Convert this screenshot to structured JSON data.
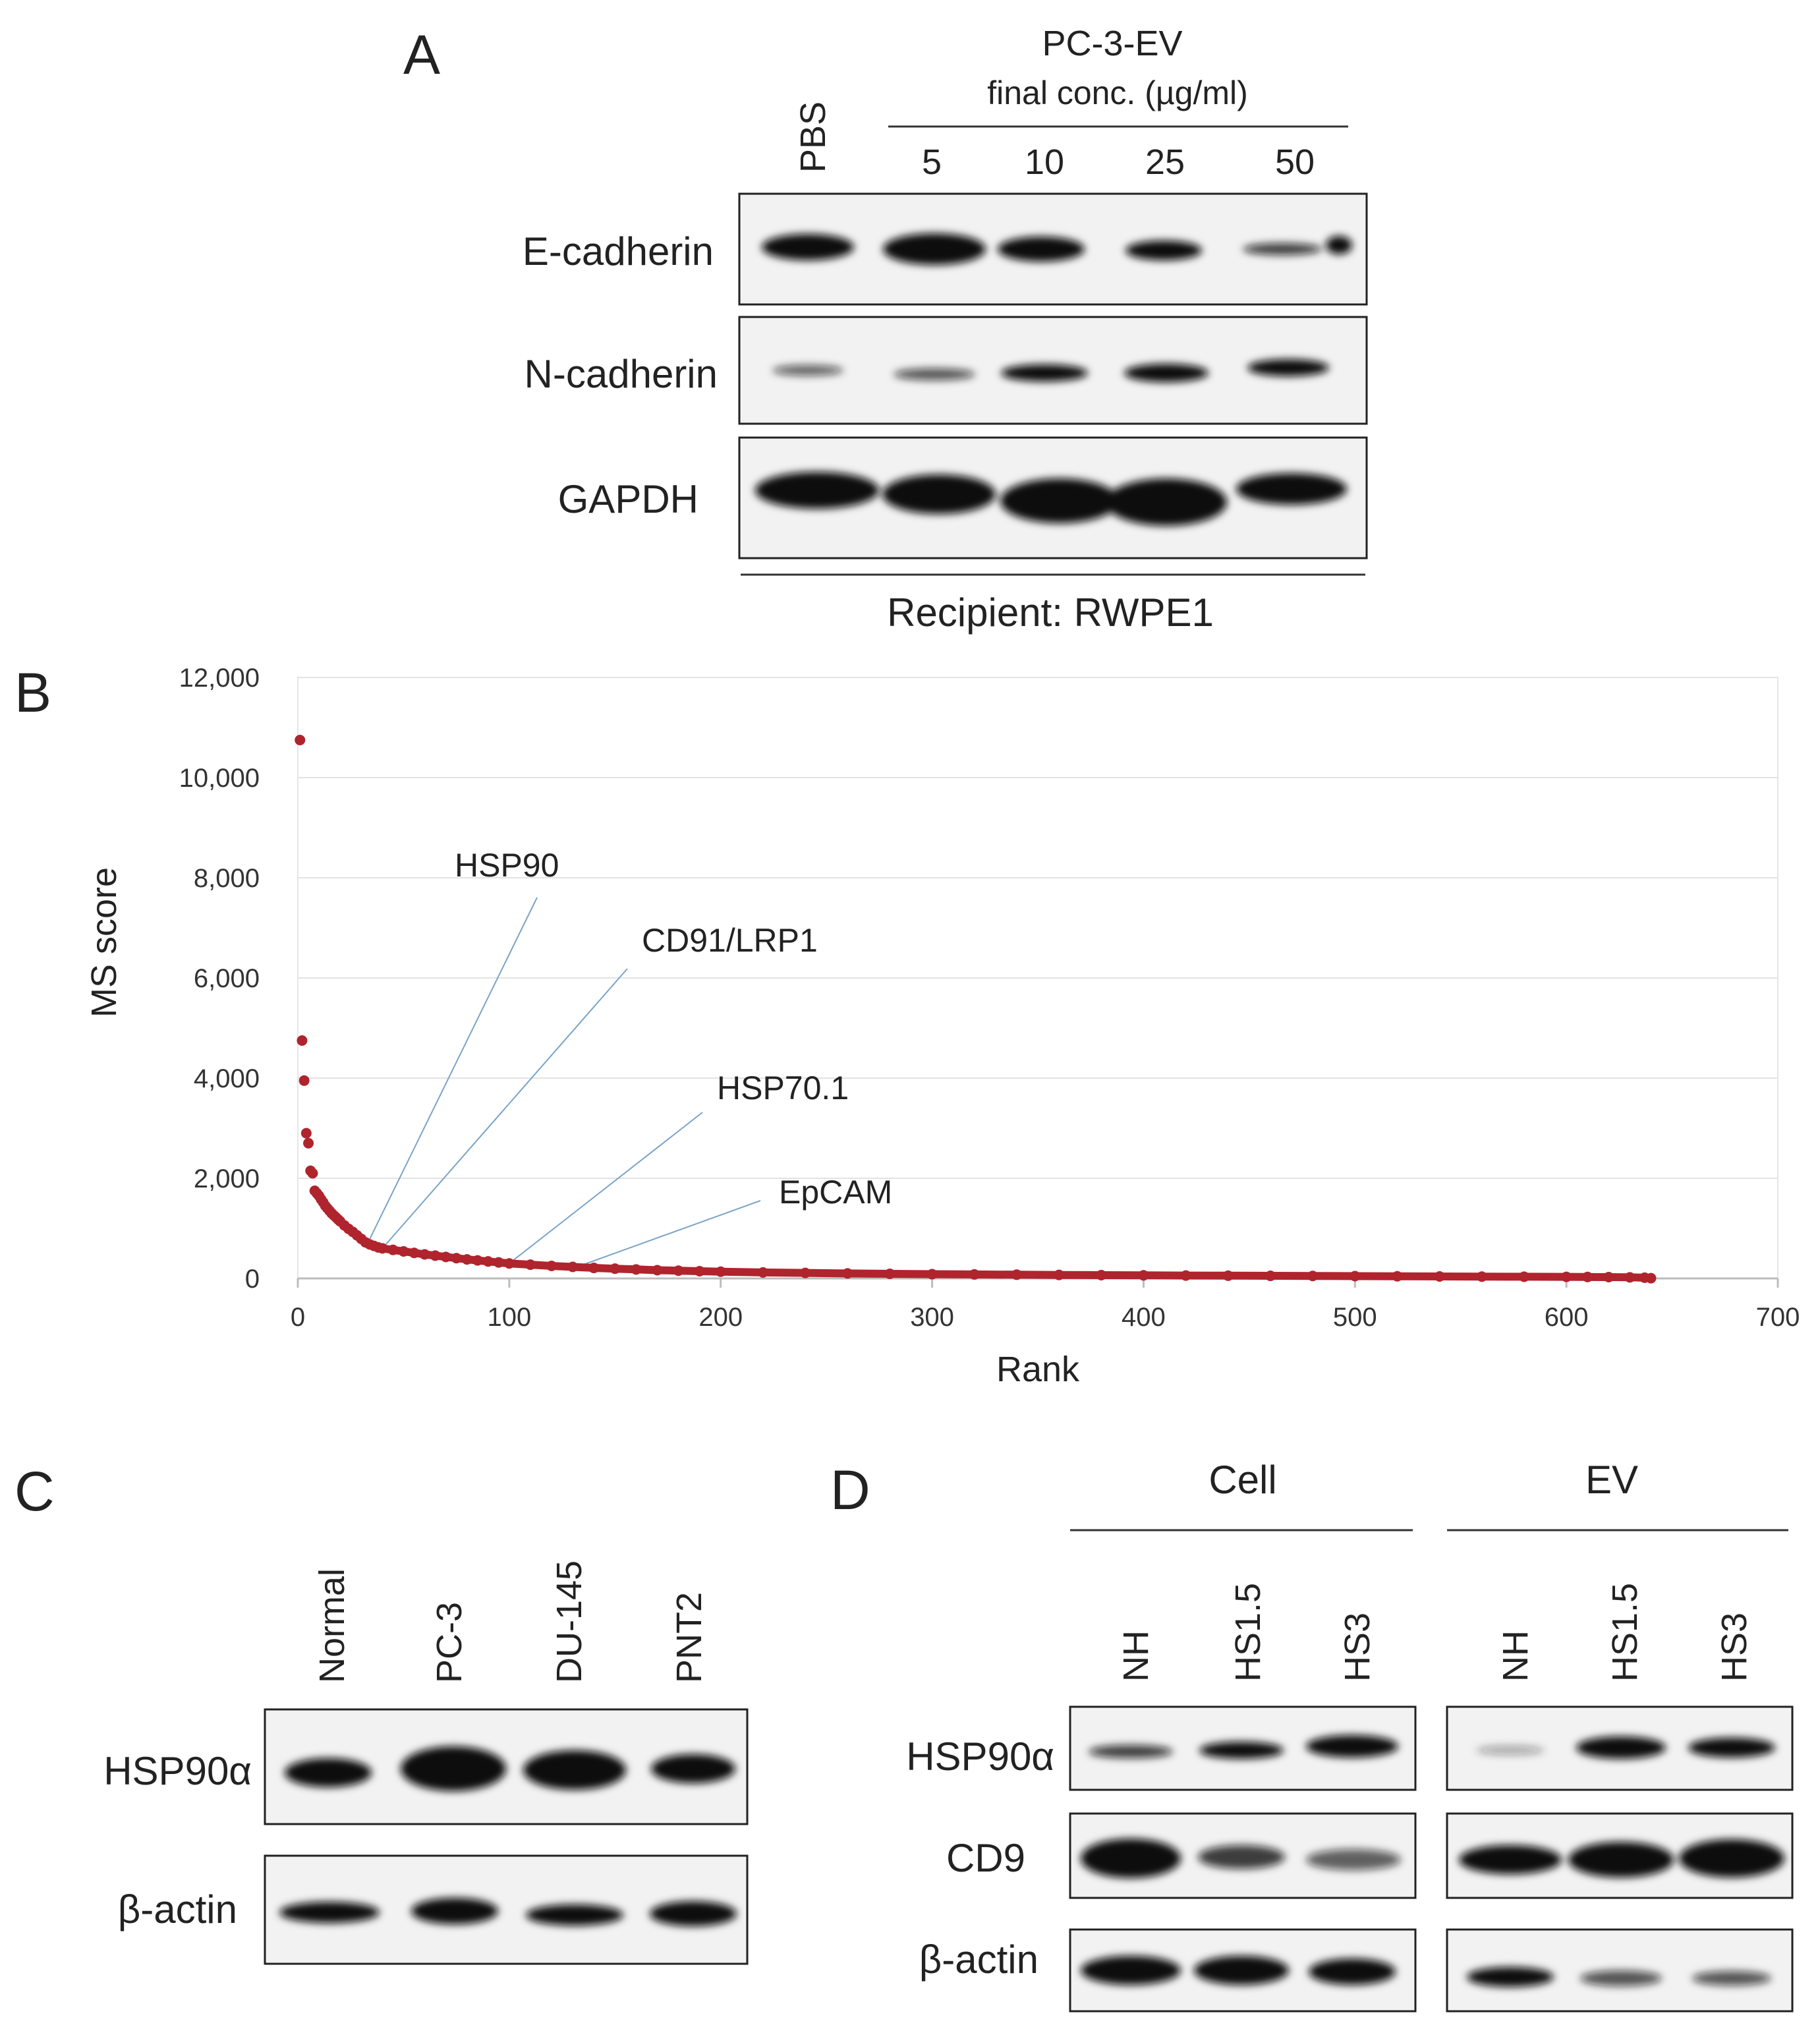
{
  "panels": [
    {
      "letter": "A"
    },
    {
      "letter": "B"
    },
    {
      "letter": "C"
    },
    {
      "letter": "D"
    }
  ],
  "panel_a": {
    "header": "PC-3-EV",
    "subheader": "final conc. (µg/ml)",
    "control_lane": "PBS",
    "lanes": [
      "5",
      "10",
      "25",
      "50"
    ],
    "rows": [
      "E-cadherin",
      "N-cadherin",
      "GAPDH"
    ],
    "footer": "Recipient: RWPE1"
  },
  "panel_c": {
    "lanes": [
      "Normal",
      "PC-3",
      "DU-145",
      "PNT2"
    ],
    "rows": [
      "HSP90α",
      "β-actin"
    ]
  },
  "panel_d": {
    "groups": [
      {
        "name": "Cell",
        "lanes": [
          "NH",
          "HS1.5",
          "HS3"
        ]
      },
      {
        "name": "EV",
        "lanes": [
          "NH",
          "HS1.5",
          "HS3"
        ]
      }
    ],
    "rows": [
      "HSP90α",
      "CD9",
      "β-actin"
    ]
  },
  "chart_data": {
    "type": "scatter",
    "xlabel": "Rank",
    "ylabel": "MS score",
    "xlim": [
      0,
      700
    ],
    "ylim": [
      0,
      12000
    ],
    "x_ticks": [
      "0",
      "100",
      "200",
      "300",
      "400",
      "500",
      "600",
      "700"
    ],
    "y_ticks": [
      "0",
      "2,000",
      "4,000",
      "6,000",
      "8,000",
      "10,000",
      "12,000"
    ],
    "grid": "horizontal",
    "marker_color": "#b0242d",
    "points": [
      {
        "x": 1,
        "y": 10750
      },
      {
        "x": 2,
        "y": 4750
      },
      {
        "x": 3,
        "y": 3950
      },
      {
        "x": 4,
        "y": 2900
      },
      {
        "x": 5,
        "y": 2700
      },
      {
        "x": 6,
        "y": 2150
      },
      {
        "x": 7,
        "y": 2100
      },
      {
        "x": 8,
        "y": 1750
      },
      {
        "x": 9,
        "y": 1700
      },
      {
        "x": 10,
        "y": 1650
      },
      {
        "x": 11,
        "y": 1580
      },
      {
        "x": 12,
        "y": 1520
      },
      {
        "x": 13,
        "y": 1450
      },
      {
        "x": 14,
        "y": 1400
      },
      {
        "x": 15,
        "y": 1350
      },
      {
        "x": 16,
        "y": 1300
      },
      {
        "x": 17,
        "y": 1260
      },
      {
        "x": 18,
        "y": 1220
      },
      {
        "x": 19,
        "y": 1180
      },
      {
        "x": 20,
        "y": 1140
      },
      {
        "x": 22,
        "y": 1060
      },
      {
        "x": 24,
        "y": 990
      },
      {
        "x": 26,
        "y": 930
      },
      {
        "x": 28,
        "y": 860
      },
      {
        "x": 30,
        "y": 790
      },
      {
        "x": 32,
        "y": 720
      },
      {
        "x": 34,
        "y": 680
      },
      {
        "x": 36,
        "y": 650
      },
      {
        "x": 38,
        "y": 620
      },
      {
        "x": 40,
        "y": 600
      },
      {
        "x": 45,
        "y": 570
      },
      {
        "x": 50,
        "y": 540
      },
      {
        "x": 55,
        "y": 510
      },
      {
        "x": 60,
        "y": 480
      },
      {
        "x": 65,
        "y": 455
      },
      {
        "x": 70,
        "y": 430
      },
      {
        "x": 75,
        "y": 405
      },
      {
        "x": 80,
        "y": 380
      },
      {
        "x": 85,
        "y": 360
      },
      {
        "x": 90,
        "y": 340
      },
      {
        "x": 95,
        "y": 320
      },
      {
        "x": 100,
        "y": 300
      },
      {
        "x": 110,
        "y": 275
      },
      {
        "x": 120,
        "y": 250
      },
      {
        "x": 130,
        "y": 230
      },
      {
        "x": 140,
        "y": 210
      },
      {
        "x": 150,
        "y": 195
      },
      {
        "x": 160,
        "y": 180
      },
      {
        "x": 170,
        "y": 165
      },
      {
        "x": 180,
        "y": 155
      },
      {
        "x": 190,
        "y": 145
      },
      {
        "x": 200,
        "y": 135
      },
      {
        "x": 220,
        "y": 120
      },
      {
        "x": 240,
        "y": 110
      },
      {
        "x": 260,
        "y": 100
      },
      {
        "x": 280,
        "y": 92
      },
      {
        "x": 300,
        "y": 85
      },
      {
        "x": 320,
        "y": 80
      },
      {
        "x": 340,
        "y": 75
      },
      {
        "x": 360,
        "y": 70
      },
      {
        "x": 380,
        "y": 66
      },
      {
        "x": 400,
        "y": 62
      },
      {
        "x": 420,
        "y": 58
      },
      {
        "x": 440,
        "y": 55
      },
      {
        "x": 460,
        "y": 52
      },
      {
        "x": 480,
        "y": 49
      },
      {
        "x": 500,
        "y": 46
      },
      {
        "x": 520,
        "y": 43
      },
      {
        "x": 540,
        "y": 40
      },
      {
        "x": 560,
        "y": 37
      },
      {
        "x": 580,
        "y": 34
      },
      {
        "x": 600,
        "y": 31
      },
      {
        "x": 610,
        "y": 29
      },
      {
        "x": 620,
        "y": 26
      },
      {
        "x": 630,
        "y": 22
      },
      {
        "x": 637,
        "y": 15
      },
      {
        "x": 640,
        "y": 5
      }
    ],
    "annotations": [
      {
        "label": "HSP90",
        "x": 33,
        "y": 700
      },
      {
        "label": "CD91/LRP1",
        "x": 40,
        "y": 600
      },
      {
        "label": "HSP70.1",
        "x": 100,
        "y": 300
      },
      {
        "label": "EpCAM",
        "x": 132,
        "y": 230
      }
    ]
  }
}
